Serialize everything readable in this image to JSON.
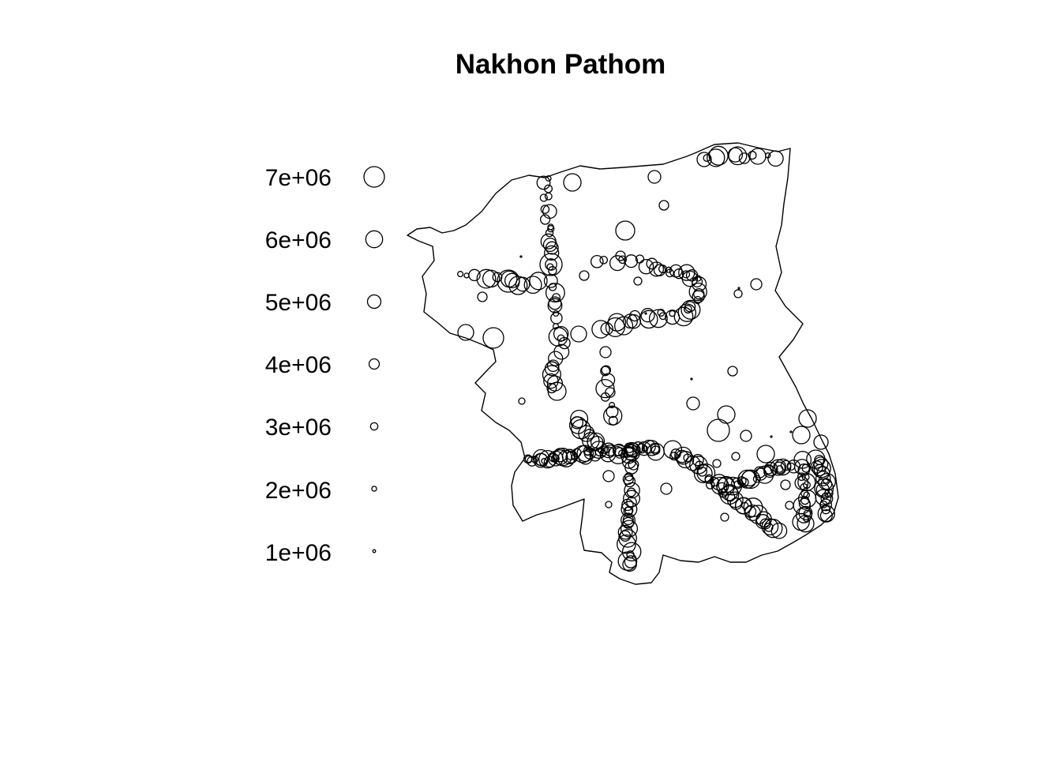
{
  "map": {
    "title": "Nakhon Pathom",
    "legend_values": [
      7000000,
      6000000,
      5000000,
      4000000,
      3000000,
      2000000,
      1000000
    ],
    "legend_labels": [
      "7e+06",
      "6e+06",
      "5e+06",
      "4e+06",
      "3e+06",
      "2e+06",
      "1e+06"
    ],
    "symbol": "open-circle",
    "color": "#000000",
    "background": "#ffffff"
  }
}
